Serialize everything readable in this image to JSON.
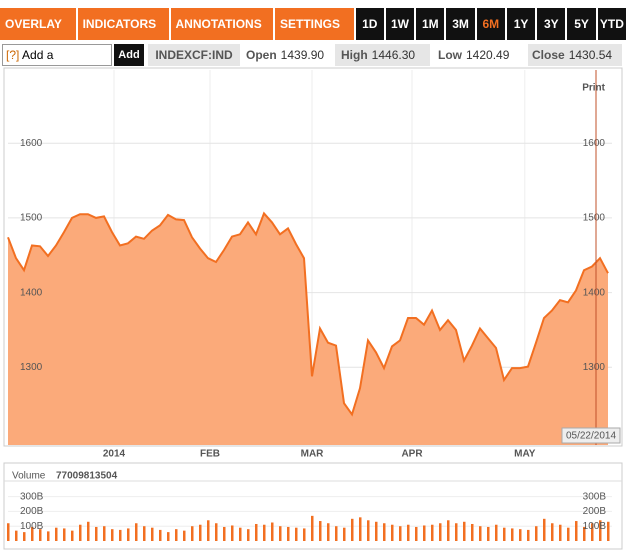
{
  "toolbar": {
    "menus": [
      "OVERLAY ▼",
      "INDICATORS ▼",
      "ANNOTATIONS ▼",
      "SETTINGS ▼"
    ],
    "ranges": [
      "1D",
      "1W",
      "1M",
      "3M",
      "6M",
      "1Y",
      "3Y",
      "5Y",
      "YTD"
    ],
    "selected_range": "6M"
  },
  "comparison": {
    "help": "[?]",
    "placeholder": "Add a Comparison",
    "button": "Add"
  },
  "quote": {
    "symbol": "INDEXCF:IND",
    "open_label": "Open",
    "open": "1439.90",
    "high_label": "High",
    "high": "1446.30",
    "low_label": "Low",
    "low": "1420.49",
    "close_label": "Close",
    "close": "1430.54"
  },
  "chart_data": [
    {
      "type": "area",
      "print_label": "Print",
      "date_label": "05/22/2014",
      "series": [
        {
          "color": "#f26f21",
          "fill": "#fbaa7a",
          "values": [
            1474,
            1446,
            1430,
            1463,
            1462,
            1449,
            1463,
            1481,
            1500,
            1505,
            1505,
            1500,
            1502,
            1481,
            1463,
            1466,
            1475,
            1472,
            1483,
            1490,
            1504,
            1498,
            1497,
            1474,
            1459,
            1446,
            1441,
            1457,
            1475,
            1478,
            1494,
            1478,
            1506,
            1494,
            1478,
            1486,
            1465,
            1446,
            1288,
            1352,
            1333,
            1329,
            1252,
            1237,
            1272,
            1336,
            1320,
            1299,
            1328,
            1336,
            1366,
            1366,
            1357,
            1376,
            1350,
            1363,
            1350,
            1309,
            1329,
            1352,
            1339,
            1326,
            1283,
            1299,
            1299,
            1301,
            1333,
            1366,
            1376,
            1390,
            1387,
            1403,
            1430,
            1435,
            1446,
            1426
          ]
        }
      ],
      "xlim": [
        0,
        75.5
      ],
      "xticks": [
        {
          "value": 13.25,
          "label": "2014"
        },
        {
          "value": 25.25,
          "label": "FEB"
        },
        {
          "value": 38,
          "label": "MAR"
        },
        {
          "value": 50.5,
          "label": "APR"
        },
        {
          "value": 64.6,
          "label": "MAY"
        }
      ],
      "ylim": [
        1196,
        1698
      ],
      "yticks": [
        1300,
        1400,
        1500,
        1600
      ],
      "grid": true
    },
    {
      "type": "bar",
      "title": "Volume",
      "total": "77009813504",
      "series": [
        {
          "color": "#f26f21",
          "values": [
            120,
            70,
            60,
            95,
            80,
            65,
            90,
            85,
            70,
            110,
            130,
            95,
            100,
            80,
            75,
            85,
            120,
            100,
            90,
            75,
            60,
            80,
            70,
            100,
            110,
            140,
            120,
            95,
            105,
            90,
            80,
            115,
            110,
            125,
            100,
            95,
            90,
            85,
            170,
            135,
            120,
            100,
            90,
            150,
            160,
            140,
            130,
            120,
            110,
            100,
            110,
            95,
            105,
            110,
            120,
            140,
            120,
            130,
            115,
            100,
            95,
            110,
            90,
            85,
            80,
            75,
            100,
            150,
            120,
            110,
            90,
            135,
            95,
            120,
            140,
            130
          ]
        }
      ],
      "xlim": [
        0,
        75.5
      ],
      "ylim": [
        0,
        480
      ],
      "yticks": [
        {
          "value": 100,
          "label": "100B"
        },
        {
          "value": 200,
          "label": "200B"
        },
        {
          "value": 300,
          "label": "300B"
        }
      ],
      "grid": true
    }
  ]
}
